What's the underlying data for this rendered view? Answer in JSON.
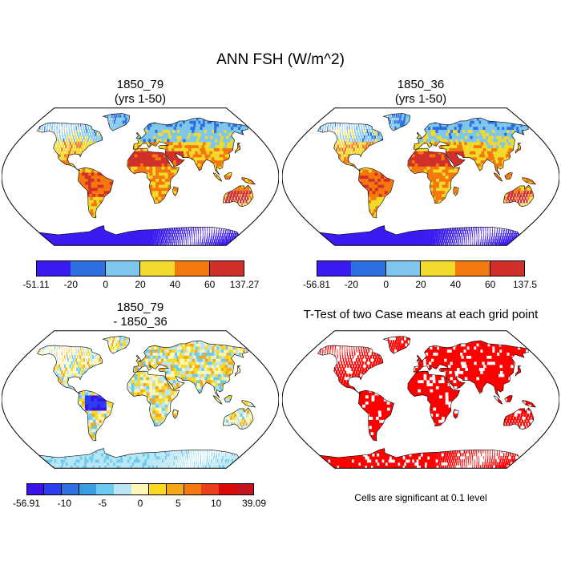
{
  "title": "ANN FSH (W/m^2)",
  "panels": [
    {
      "title_line1": "1850_79",
      "title_line2": "(yrs 1-50)"
    },
    {
      "title_line1": "1850_36",
      "title_line2": "(yrs 1-50)"
    },
    {
      "title_line1": "1850_79",
      "title_line2": "- 1850_36"
    },
    {
      "title_line1": "T-Test of two Case means at each grid point",
      "title_line2": ""
    }
  ],
  "colorbars": [
    {
      "colors": [
        "#3a1cf0",
        "#2b6fe0",
        "#7fc6ec",
        "#f2da2a",
        "#f4780e",
        "#d1302a"
      ],
      "labels": [
        "-51.11",
        "-20",
        "0",
        "20",
        "40",
        "60",
        "137.27"
      ]
    },
    {
      "colors": [
        "#3a1cf0",
        "#2b6fe0",
        "#7fc6ec",
        "#f2da2a",
        "#f4780e",
        "#d1302a"
      ],
      "labels": [
        "-56.81",
        "-20",
        "0",
        "20",
        "40",
        "60",
        "137.5"
      ]
    },
    {
      "colors": [
        "#3b12e8",
        "#2b3ff0",
        "#2e72e2",
        "#3a9de4",
        "#6ccaf0",
        "#b9e6f4",
        "#fdf6b4",
        "#f8d820",
        "#f4a818",
        "#f27a10",
        "#e8401c",
        "#d90a0a",
        "#c4141e"
      ],
      "labels": [
        "-56.91",
        "-10",
        "-5",
        "0",
        "5",
        "10",
        "39.09"
      ]
    }
  ],
  "ttest_note": "Cells are significant at 0.1 level",
  "colors": {
    "ocean": "#ffffff",
    "land_warm": "#e0521c",
    "land_hot": "#cf2e27",
    "land_mid": "#f2da2a",
    "land_cool": "#7fc6ec",
    "land_cold": "#3a1cf0",
    "significant": "#ff0000"
  }
}
